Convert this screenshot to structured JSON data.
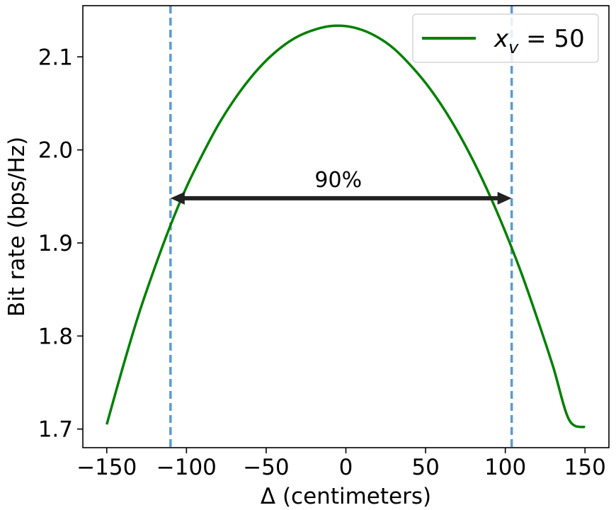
{
  "chart_data": {
    "type": "line",
    "title": "",
    "xlabel": "Δ (centimeters)",
    "ylabel": "Bit rate (bps/Hz)",
    "xlim": [
      -165,
      165
    ],
    "ylim": [
      1.68,
      2.155
    ],
    "xticks": [
      -150,
      -100,
      -50,
      0,
      50,
      100,
      150
    ],
    "xtick_labels": [
      "−150",
      "−100",
      "−50",
      "0",
      "50",
      "100",
      "150"
    ],
    "yticks": [
      1.7,
      1.8,
      1.9,
      2.0,
      2.1
    ],
    "ytick_labels": [
      "1.7",
      "1.8",
      "1.9",
      "2.0",
      "2.1"
    ],
    "grid": false,
    "legend": {
      "placement": "top-right",
      "label_base": "x",
      "label_sub": "v",
      "label_rest": " = 50"
    },
    "series": [
      {
        "name": "x_v = 50",
        "color": "#008000",
        "x": [
          -150,
          -140,
          -130,
          -120,
          -110,
          -100,
          -90,
          -80,
          -70,
          -60,
          -50,
          -40,
          -30,
          -20,
          -10,
          0,
          10,
          20,
          30,
          40,
          50,
          60,
          70,
          80,
          90,
          100,
          110,
          120,
          130,
          140,
          150
        ],
        "y": [
          1.705,
          1.766,
          1.823,
          1.873,
          1.919,
          1.96,
          1.995,
          2.027,
          2.054,
          2.077,
          2.096,
          2.111,
          2.122,
          2.129,
          2.133,
          2.133,
          2.129,
          2.121,
          2.109,
          2.092,
          2.072,
          2.048,
          2.02,
          1.988,
          1.952,
          1.912,
          1.868,
          1.819,
          1.767,
          1.71,
          1.702
        ]
      }
    ],
    "vlines": [
      {
        "x": -110,
        "color": "#5b9bd5",
        "style": "dashed"
      },
      {
        "x": 104,
        "color": "#5b9bd5",
        "style": "dashed"
      }
    ],
    "annotation": {
      "label": "90%",
      "arrow_x_start": -110,
      "arrow_x_end": 104,
      "arrow_y": 1.948,
      "arrow_style": "double",
      "color": "#222222"
    }
  }
}
